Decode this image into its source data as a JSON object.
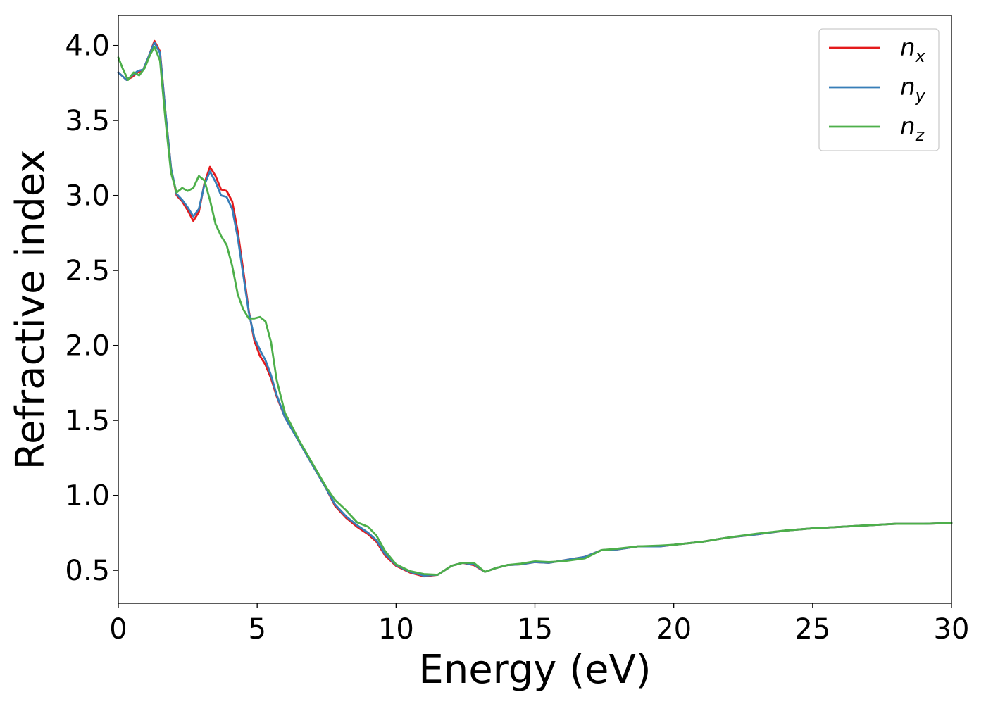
{
  "chart_data": {
    "type": "line",
    "xlabel": "Energy (eV)",
    "ylabel": "Refractive index",
    "xlim": [
      0,
      30
    ],
    "ylim": [
      0.28,
      4.2
    ],
    "x_ticks": [
      0,
      5,
      10,
      15,
      20,
      25,
      30
    ],
    "x_tick_labels": [
      "0",
      "5",
      "10",
      "15",
      "20",
      "25",
      "30"
    ],
    "y_ticks": [
      0.5,
      1.0,
      1.5,
      2.0,
      2.5,
      3.0,
      3.5,
      4.0
    ],
    "y_tick_labels": [
      "0.5",
      "1.0",
      "1.5",
      "2.0",
      "2.5",
      "3.0",
      "3.5",
      "4.0"
    ],
    "grid": false,
    "legend_position": "top-right",
    "series": [
      {
        "name": "n_x",
        "legend_base": "n",
        "legend_sub": "x",
        "color": "#e41a1c",
        "points": [
          [
            0,
            3.82
          ],
          [
            0.3,
            3.77
          ],
          [
            0.5,
            3.79
          ],
          [
            0.7,
            3.82
          ],
          [
            0.9,
            3.84
          ],
          [
            1.1,
            3.93
          ],
          [
            1.3,
            4.03
          ],
          [
            1.5,
            3.96
          ],
          [
            1.7,
            3.55
          ],
          [
            1.9,
            3.18
          ],
          [
            2.1,
            3.0
          ],
          [
            2.3,
            2.96
          ],
          [
            2.5,
            2.9
          ],
          [
            2.7,
            2.83
          ],
          [
            2.9,
            2.89
          ],
          [
            3.1,
            3.08
          ],
          [
            3.3,
            3.19
          ],
          [
            3.5,
            3.13
          ],
          [
            3.7,
            3.04
          ],
          [
            3.9,
            3.03
          ],
          [
            4.1,
            2.96
          ],
          [
            4.3,
            2.76
          ],
          [
            4.5,
            2.5
          ],
          [
            4.7,
            2.23
          ],
          [
            4.9,
            2.03
          ],
          [
            5.1,
            1.93
          ],
          [
            5.3,
            1.87
          ],
          [
            5.5,
            1.78
          ],
          [
            5.7,
            1.66
          ],
          [
            6.0,
            1.52
          ],
          [
            6.5,
            1.36
          ],
          [
            7.0,
            1.2
          ],
          [
            7.5,
            1.04
          ],
          [
            7.8,
            0.93
          ],
          [
            8.2,
            0.85
          ],
          [
            8.6,
            0.79
          ],
          [
            9.0,
            0.74
          ],
          [
            9.3,
            0.69
          ],
          [
            9.6,
            0.6
          ],
          [
            10.0,
            0.53
          ],
          [
            10.5,
            0.485
          ],
          [
            11.0,
            0.46
          ],
          [
            11.5,
            0.47
          ],
          [
            12.0,
            0.53
          ],
          [
            12.4,
            0.55
          ],
          [
            12.8,
            0.535
          ],
          [
            13.2,
            0.49
          ],
          [
            13.6,
            0.515
          ],
          [
            14.0,
            0.535
          ],
          [
            14.5,
            0.54
          ],
          [
            15.0,
            0.555
          ],
          [
            15.5,
            0.55
          ],
          [
            16.0,
            0.565
          ],
          [
            16.8,
            0.59
          ],
          [
            17.4,
            0.635
          ],
          [
            18.0,
            0.64
          ],
          [
            18.7,
            0.66
          ],
          [
            19.5,
            0.66
          ],
          [
            20.0,
            0.67
          ],
          [
            21.0,
            0.69
          ],
          [
            22.0,
            0.72
          ],
          [
            23.0,
            0.74
          ],
          [
            24.0,
            0.765
          ],
          [
            25.0,
            0.78
          ],
          [
            26.0,
            0.79
          ],
          [
            27.0,
            0.8
          ],
          [
            28.0,
            0.81
          ],
          [
            29.0,
            0.81
          ],
          [
            30.0,
            0.815
          ]
        ]
      },
      {
        "name": "n_y",
        "legend_base": "n",
        "legend_sub": "y",
        "color": "#377eb8",
        "points": [
          [
            0,
            3.82
          ],
          [
            0.3,
            3.77
          ],
          [
            0.5,
            3.8
          ],
          [
            0.7,
            3.83
          ],
          [
            0.9,
            3.84
          ],
          [
            1.1,
            3.93
          ],
          [
            1.3,
            4.02
          ],
          [
            1.5,
            3.95
          ],
          [
            1.7,
            3.55
          ],
          [
            1.9,
            3.18
          ],
          [
            2.1,
            3.01
          ],
          [
            2.3,
            2.97
          ],
          [
            2.5,
            2.92
          ],
          [
            2.7,
            2.86
          ],
          [
            2.9,
            2.91
          ],
          [
            3.1,
            3.07
          ],
          [
            3.3,
            3.16
          ],
          [
            3.5,
            3.09
          ],
          [
            3.7,
            3.0
          ],
          [
            3.9,
            2.99
          ],
          [
            4.1,
            2.91
          ],
          [
            4.3,
            2.72
          ],
          [
            4.5,
            2.47
          ],
          [
            4.7,
            2.22
          ],
          [
            4.9,
            2.05
          ],
          [
            5.1,
            1.97
          ],
          [
            5.3,
            1.9
          ],
          [
            5.5,
            1.8
          ],
          [
            5.7,
            1.67
          ],
          [
            6.0,
            1.52
          ],
          [
            6.5,
            1.36
          ],
          [
            7.0,
            1.2
          ],
          [
            7.5,
            1.04
          ],
          [
            7.8,
            0.94
          ],
          [
            8.2,
            0.86
          ],
          [
            8.6,
            0.8
          ],
          [
            9.0,
            0.75
          ],
          [
            9.3,
            0.7
          ],
          [
            9.6,
            0.61
          ],
          [
            10.0,
            0.535
          ],
          [
            10.5,
            0.49
          ],
          [
            11.0,
            0.465
          ],
          [
            11.5,
            0.47
          ],
          [
            12.0,
            0.53
          ],
          [
            12.4,
            0.55
          ],
          [
            12.8,
            0.54
          ],
          [
            13.2,
            0.49
          ],
          [
            13.6,
            0.515
          ],
          [
            14.0,
            0.535
          ],
          [
            14.5,
            0.54
          ],
          [
            15.0,
            0.555
          ],
          [
            15.5,
            0.55
          ],
          [
            16.0,
            0.565
          ],
          [
            16.8,
            0.59
          ],
          [
            17.4,
            0.635
          ],
          [
            18.0,
            0.64
          ],
          [
            18.7,
            0.66
          ],
          [
            19.5,
            0.66
          ],
          [
            20.0,
            0.67
          ],
          [
            21.0,
            0.69
          ],
          [
            22.0,
            0.72
          ],
          [
            23.0,
            0.74
          ],
          [
            24.0,
            0.765
          ],
          [
            25.0,
            0.78
          ],
          [
            26.0,
            0.79
          ],
          [
            27.0,
            0.8
          ],
          [
            28.0,
            0.81
          ],
          [
            29.0,
            0.81
          ],
          [
            30.0,
            0.815
          ]
        ]
      },
      {
        "name": "n_z",
        "legend_base": "n",
        "legend_sub": "z",
        "color": "#4daf4a",
        "points": [
          [
            0,
            3.92
          ],
          [
            0.15,
            3.85
          ],
          [
            0.35,
            3.77
          ],
          [
            0.55,
            3.82
          ],
          [
            0.75,
            3.8
          ],
          [
            0.95,
            3.85
          ],
          [
            1.15,
            3.94
          ],
          [
            1.3,
            3.99
          ],
          [
            1.5,
            3.9
          ],
          [
            1.7,
            3.5
          ],
          [
            1.9,
            3.15
          ],
          [
            2.1,
            3.02
          ],
          [
            2.3,
            3.05
          ],
          [
            2.5,
            3.03
          ],
          [
            2.7,
            3.05
          ],
          [
            2.9,
            3.13
          ],
          [
            3.1,
            3.1
          ],
          [
            3.3,
            2.97
          ],
          [
            3.5,
            2.81
          ],
          [
            3.7,
            2.73
          ],
          [
            3.9,
            2.67
          ],
          [
            4.1,
            2.53
          ],
          [
            4.3,
            2.34
          ],
          [
            4.5,
            2.24
          ],
          [
            4.7,
            2.18
          ],
          [
            4.9,
            2.18
          ],
          [
            5.1,
            2.19
          ],
          [
            5.3,
            2.16
          ],
          [
            5.5,
            2.02
          ],
          [
            5.7,
            1.77
          ],
          [
            6.0,
            1.55
          ],
          [
            6.5,
            1.37
          ],
          [
            7.0,
            1.21
          ],
          [
            7.5,
            1.05
          ],
          [
            7.8,
            0.97
          ],
          [
            8.2,
            0.9
          ],
          [
            8.6,
            0.82
          ],
          [
            9.0,
            0.79
          ],
          [
            9.3,
            0.73
          ],
          [
            9.6,
            0.63
          ],
          [
            10.0,
            0.54
          ],
          [
            10.5,
            0.495
          ],
          [
            11.0,
            0.475
          ],
          [
            11.5,
            0.47
          ],
          [
            12.0,
            0.53
          ],
          [
            12.4,
            0.55
          ],
          [
            12.8,
            0.55
          ],
          [
            13.2,
            0.49
          ],
          [
            13.6,
            0.515
          ],
          [
            14.0,
            0.535
          ],
          [
            14.5,
            0.545
          ],
          [
            15.0,
            0.56
          ],
          [
            15.5,
            0.555
          ],
          [
            16.0,
            0.56
          ],
          [
            16.8,
            0.58
          ],
          [
            17.4,
            0.635
          ],
          [
            18.0,
            0.645
          ],
          [
            18.7,
            0.66
          ],
          [
            19.5,
            0.665
          ],
          [
            20.0,
            0.67
          ],
          [
            21.0,
            0.69
          ],
          [
            22.0,
            0.72
          ],
          [
            23.0,
            0.745
          ],
          [
            24.0,
            0.765
          ],
          [
            25.0,
            0.78
          ],
          [
            26.0,
            0.79
          ],
          [
            27.0,
            0.8
          ],
          [
            28.0,
            0.81
          ],
          [
            29.0,
            0.81
          ],
          [
            30.0,
            0.815
          ]
        ]
      }
    ]
  }
}
